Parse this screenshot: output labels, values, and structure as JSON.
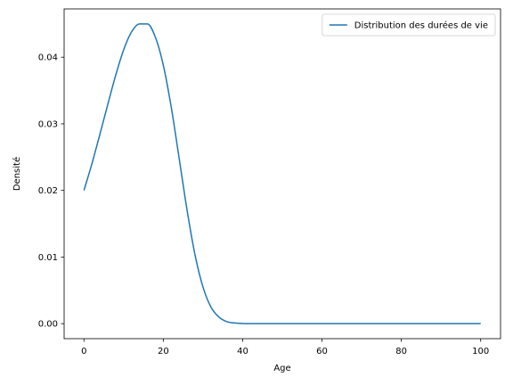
{
  "chart_data": {
    "type": "line",
    "title": "",
    "xlabel": "Age",
    "ylabel": "Densité",
    "xlim": [
      -5,
      105
    ],
    "ylim": [
      -0.00225,
      0.04725
    ],
    "x_ticks": [
      0,
      20,
      40,
      60,
      80,
      100
    ],
    "x_tick_labels": [
      "0",
      "20",
      "40",
      "60",
      "80",
      "100"
    ],
    "y_ticks": [
      0.0,
      0.01,
      0.02,
      0.03,
      0.04
    ],
    "y_tick_labels": [
      "0.00",
      "0.01",
      "0.02",
      "0.03",
      "0.04"
    ],
    "grid": false,
    "legend_position": "top-right",
    "series": [
      {
        "name": "Distribution des durées de vie",
        "color": "#1f77b4",
        "x": [
          0,
          2,
          4,
          6,
          8,
          10,
          12,
          14,
          16,
          18,
          20,
          22,
          24,
          26,
          28,
          30,
          32,
          34,
          36,
          38,
          40,
          42,
          44,
          46,
          50,
          60,
          70,
          80,
          90,
          100
        ],
        "y": [
          0.02,
          0.024,
          0.0284,
          0.0329,
          0.0373,
          0.0411,
          0.0438,
          0.045,
          0.045,
          0.043,
          0.0388,
          0.0325,
          0.0248,
          0.017,
          0.0103,
          0.0055,
          0.0025,
          0.001,
          0.0003,
          0.0001,
          2e-05,
          0.0,
          0.0,
          0.0,
          0.0,
          0.0,
          0.0,
          0.0,
          0.0,
          0.0
        ]
      }
    ]
  }
}
